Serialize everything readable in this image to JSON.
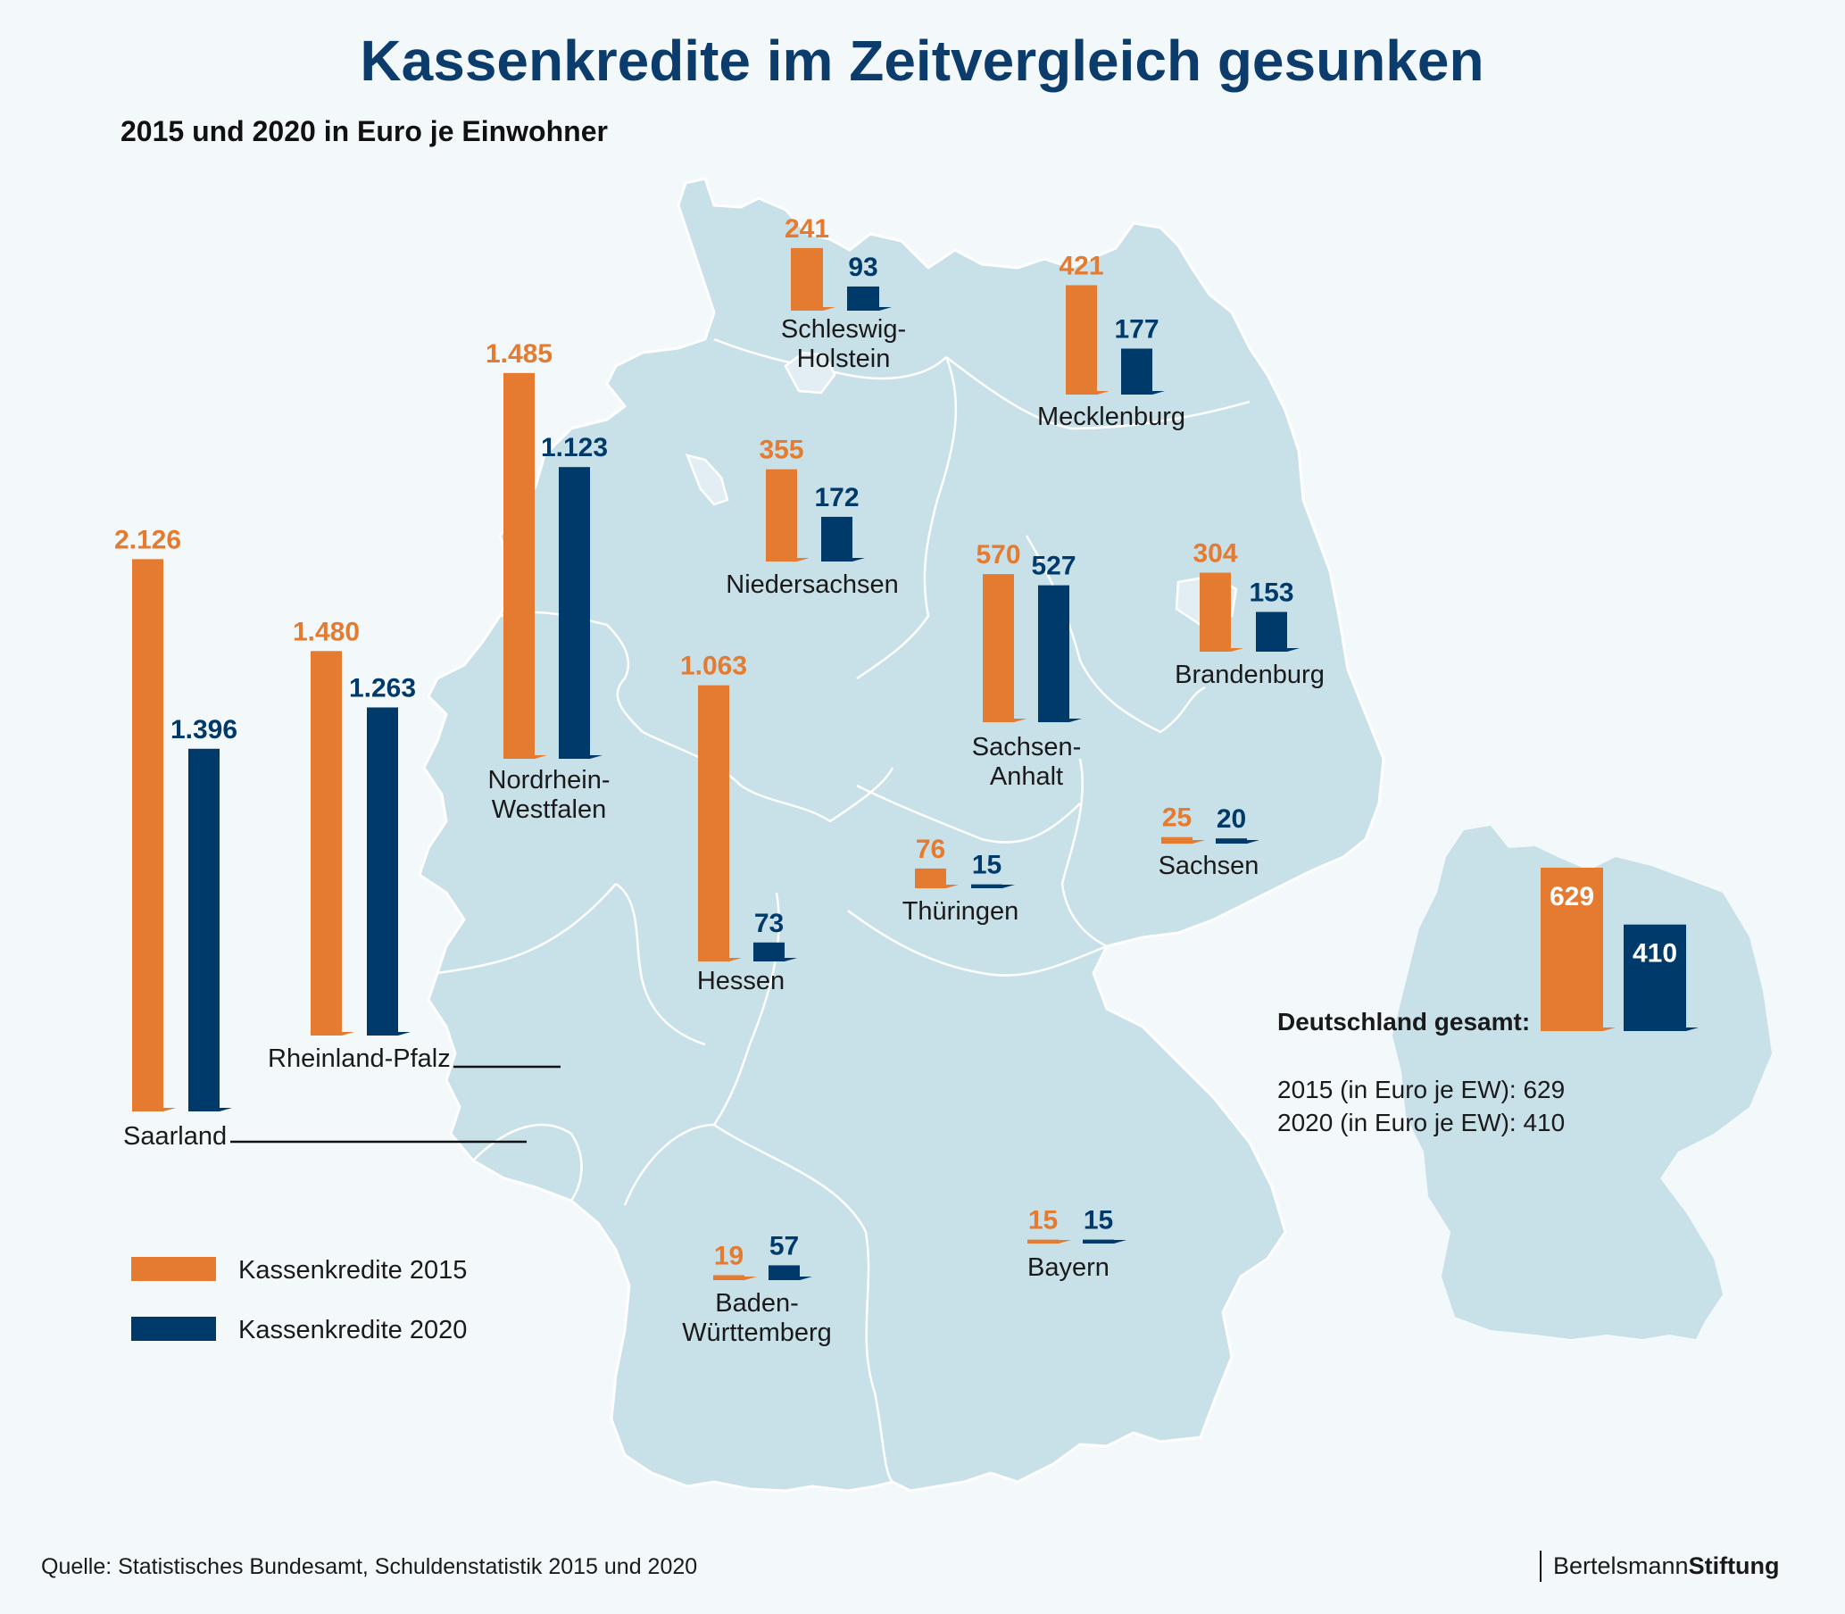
{
  "header": {
    "title": "Kassenkredite im Zeitvergleich gesunken",
    "subtitle": "2015 und 2020 in Euro je Einwohner"
  },
  "colors": {
    "series_2015": "#e57a31",
    "series_2020": "#003a6b",
    "title": "#0b3c6b",
    "map_fill": "#c8e0e8",
    "background": "#f3f8fb"
  },
  "legend": {
    "items": [
      {
        "label": "Kassenkredite 2015",
        "color": "#e57a31"
      },
      {
        "label": "Kassenkredite 2020",
        "color": "#003a6b"
      }
    ]
  },
  "germany_total": {
    "title": "Deutschland gesamt:",
    "value_2015": 629,
    "value_2020": 410,
    "label_2015": "629",
    "label_2020": "410",
    "line_2015": "2015 (in Euro je EW): 629",
    "line_2020": "2020 (in Euro je EW): 410"
  },
  "footer": {
    "source": "Quelle: Statistisches Bundesamt, Schuldenstatistik 2015 und 2020",
    "brand_light": "Bertelsmann",
    "brand_bold": "Stiftung"
  },
  "chart_data": {
    "type": "bar",
    "title": "Kassenkredite im Zeitvergleich gesunken",
    "subtitle": "2015 und 2020 in Euro je Einwohner",
    "xlabel": "",
    "ylabel": "Euro je Einwohner",
    "legend_position": "bottom-left",
    "grid": false,
    "categories": [
      "Saarland",
      "Rheinland-Pfalz",
      "Nordrhein-Westfalen",
      "Schleswig-Holstein",
      "Mecklenburg",
      "Niedersachsen",
      "Sachsen-Anhalt",
      "Brandenburg",
      "Hessen",
      "Thüringen",
      "Sachsen",
      "Baden-Württemberg",
      "Bayern",
      "Deutschland gesamt"
    ],
    "series": [
      {
        "name": "Kassenkredite 2015",
        "values": [
          2126,
          1480,
          1485,
          241,
          421,
          355,
          570,
          304,
          1063,
          76,
          25,
          19,
          15,
          629
        ]
      },
      {
        "name": "Kassenkredite 2020",
        "values": [
          1396,
          1263,
          1123,
          93,
          177,
          172,
          527,
          153,
          73,
          15,
          20,
          57,
          15,
          410
        ]
      }
    ],
    "value_labels_2015": [
      "2.126",
      "1.480",
      "1.485",
      "241",
      "421",
      "355",
      "570",
      "304",
      "1.063",
      "76",
      "25",
      "19",
      "15",
      "629"
    ],
    "value_labels_2020": [
      "1.396",
      "1.263",
      "1.123",
      "93",
      "177",
      "172",
      "527",
      "153",
      "73",
      "15",
      "20",
      "57",
      "15",
      "410"
    ],
    "state_labels": [
      [
        "Saarland"
      ],
      [
        "Rheinland-Pfalz"
      ],
      [
        "Nordrhein-",
        "Westfalen"
      ],
      [
        "Schleswig-",
        "Holstein"
      ],
      [
        "Mecklenburg"
      ],
      [
        "Niedersachsen"
      ],
      [
        "Sachsen-",
        "Anhalt"
      ],
      [
        "Brandenburg"
      ],
      [
        "Hessen"
      ],
      [
        "Thüringen"
      ],
      [
        "Sachsen"
      ],
      [
        "Baden-",
        "Württemberg"
      ],
      [
        "Bayern"
      ]
    ]
  }
}
